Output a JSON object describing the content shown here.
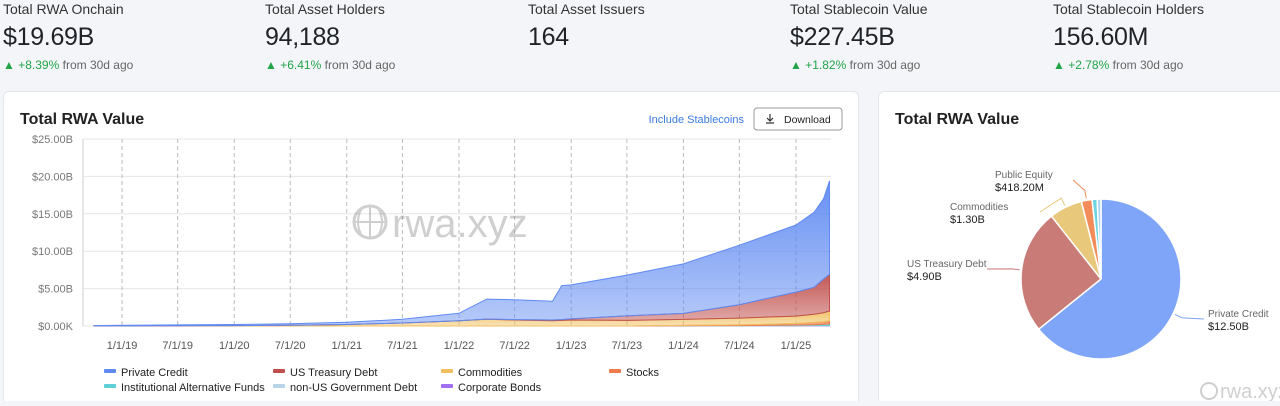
{
  "stats": [
    {
      "label": "Total RWA Onchain",
      "value": "$19.69B",
      "change": "+8.39%",
      "period": "from 30d ago"
    },
    {
      "label": "Total Asset Holders",
      "value": "94,188",
      "change": "+6.41%",
      "period": "from 30d ago"
    },
    {
      "label": "Total Asset Issuers",
      "value": "164"
    },
    {
      "label": "Total Stablecoin Value",
      "value": "$227.45B",
      "change": "+1.82%",
      "period": "from 30d ago"
    },
    {
      "label": "Total Stablecoin Holders",
      "value": "156.60M",
      "change": "+2.78%",
      "period": "from 30d ago"
    }
  ],
  "chart_data": [
    {
      "type": "area",
      "stacked": true,
      "title": "Total RWA Value",
      "toggle_label": "Include Stablecoins",
      "button_label": "Download",
      "watermark": "rwa.xyz",
      "x": [
        "10/1/18",
        "1/1/19",
        "7/1/19",
        "1/1/20",
        "7/1/20",
        "1/1/21",
        "7/1/21",
        "1/1/22",
        "4/1/22",
        "7/1/22",
        "11/1/22",
        "12/1/22",
        "1/1/23",
        "7/1/23",
        "1/1/24",
        "7/1/24",
        "1/1/25",
        "3/1/25",
        "4/1/25",
        "4/20/25"
      ],
      "xlim": [
        "8/27/18",
        "4/25/25"
      ],
      "xticks": [
        "1/1/19",
        "7/1/19",
        "1/1/20",
        "7/1/20",
        "1/1/21",
        "7/1/21",
        "1/1/22",
        "7/1/22",
        "1/1/23",
        "7/1/23",
        "1/1/24",
        "7/1/24",
        "1/1/25"
      ],
      "ylim": [
        0,
        25
      ],
      "yticks": [
        {
          "value": 0,
          "label": "$0.00K"
        },
        {
          "value": 5,
          "label": "$5.00B"
        },
        {
          "value": 10,
          "label": "$10.00B"
        },
        {
          "value": 15,
          "label": "$15.00B"
        },
        {
          "value": 20,
          "label": "$20.00B"
        },
        {
          "value": 25,
          "label": "$25.00B"
        }
      ],
      "grid": true,
      "series": [
        {
          "name": "Private Credit",
          "color": "#5f8af2",
          "values": [
            0.04,
            0.08,
            0.12,
            0.15,
            0.2,
            0.3,
            0.5,
            0.99,
            2.68,
            2.65,
            2.5,
            4.55,
            4.55,
            5.45,
            6.62,
            7.95,
            8.97,
            10.02,
            10.75,
            12.5
          ]
        },
        {
          "name": "US Treasury Debt",
          "color": "#c0504d",
          "values": [
            0,
            0,
            0,
            0,
            0,
            0,
            0,
            0.01,
            0.02,
            0.05,
            0.1,
            0.1,
            0.15,
            0.6,
            0.8,
            1.8,
            3.2,
            3.6,
            4.5,
            4.9
          ]
        },
        {
          "name": "Commodities",
          "color": "#f0c060",
          "values": [
            0.01,
            0.02,
            0.03,
            0.05,
            0.1,
            0.2,
            0.4,
            0.7,
            0.9,
            0.8,
            0.7,
            0.75,
            0.8,
            0.75,
            0.8,
            0.9,
            1.0,
            1.1,
            1.2,
            1.3
          ]
        },
        {
          "name": "Stocks",
          "color": "#f07a4a",
          "values": [
            0,
            0,
            0,
            0,
            0,
            0,
            0,
            0,
            0,
            0,
            0,
            0,
            0,
            0,
            0.05,
            0.1,
            0.2,
            0.3,
            0.35,
            0.42
          ]
        },
        {
          "name": "Institutional Alternative Funds",
          "color": "#5fd0d8",
          "values": [
            0,
            0,
            0,
            0,
            0,
            0,
            0,
            0,
            0,
            0,
            0,
            0,
            0,
            0,
            0,
            0,
            0.05,
            0.1,
            0.15,
            0.2
          ]
        },
        {
          "name": "non-US Government Debt",
          "color": "#b8d4e8",
          "values": [
            0,
            0,
            0,
            0,
            0,
            0,
            0,
            0,
            0,
            0,
            0,
            0,
            0,
            0,
            0.02,
            0.03,
            0.05,
            0.05,
            0.05,
            0.05
          ]
        },
        {
          "name": "Corporate Bonds",
          "color": "#a070f0",
          "values": [
            0,
            0,
            0,
            0,
            0,
            0,
            0,
            0,
            0,
            0,
            0,
            0,
            0,
            0,
            0.01,
            0.02,
            0.03,
            0.03,
            0.03,
            0.03
          ]
        }
      ]
    },
    {
      "type": "pie",
      "title": "Total RWA Value",
      "watermark": "rwa.xyz",
      "categories": [
        "Private Credit",
        "US Treasury Debt",
        "Commodities",
        "Public Equity",
        null,
        null
      ],
      "values": [
        12.5,
        4.9,
        1.3,
        0.4182,
        0.2,
        0.15
      ],
      "value_labels": [
        "$12.50B",
        "$4.90B",
        "$1.30B",
        "$418.20M",
        null,
        null
      ],
      "colors": [
        "#7ea5f8",
        "#c97b78",
        "#e8c87a",
        "#f28c5a",
        "#6fd6e0",
        "#acd6f2"
      ]
    }
  ]
}
